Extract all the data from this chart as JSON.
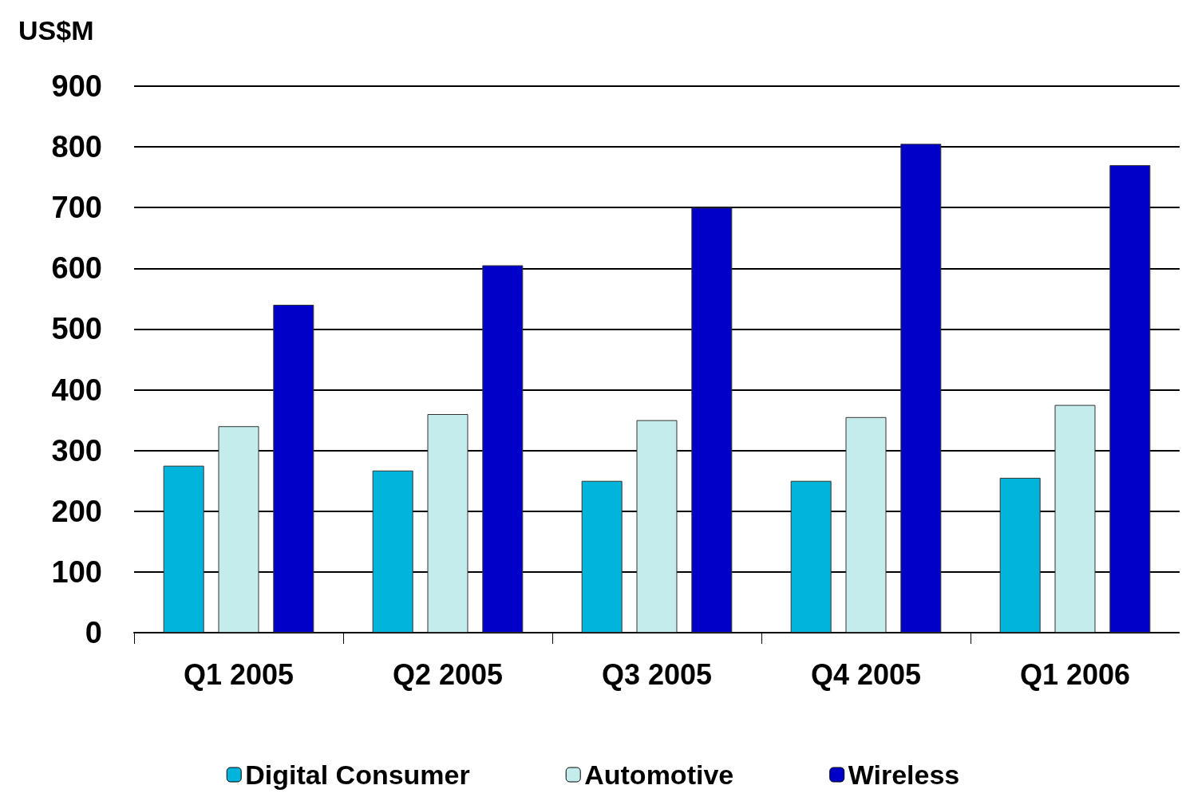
{
  "chart_data": {
    "type": "bar",
    "ylabel": "US$M",
    "categories": [
      "Q1 2005",
      "Q2 2005",
      "Q3 2005",
      "Q4 2005",
      "Q1 2006"
    ],
    "series": [
      {
        "name": "Digital Consumer",
        "color": "#00b4dc",
        "values": [
          275,
          267,
          250,
          250,
          255
        ]
      },
      {
        "name": "Automotive",
        "color": "#c4ecec",
        "values": [
          340,
          360,
          350,
          355,
          375
        ]
      },
      {
        "name": "Wireless",
        "color": "#0000c8",
        "values": [
          540,
          605,
          700,
          805,
          770
        ]
      }
    ],
    "ylim": [
      0,
      900
    ],
    "yticks": [
      0,
      100,
      200,
      300,
      400,
      500,
      600,
      700,
      800,
      900
    ],
    "grid": "y",
    "legend": "bottom"
  }
}
